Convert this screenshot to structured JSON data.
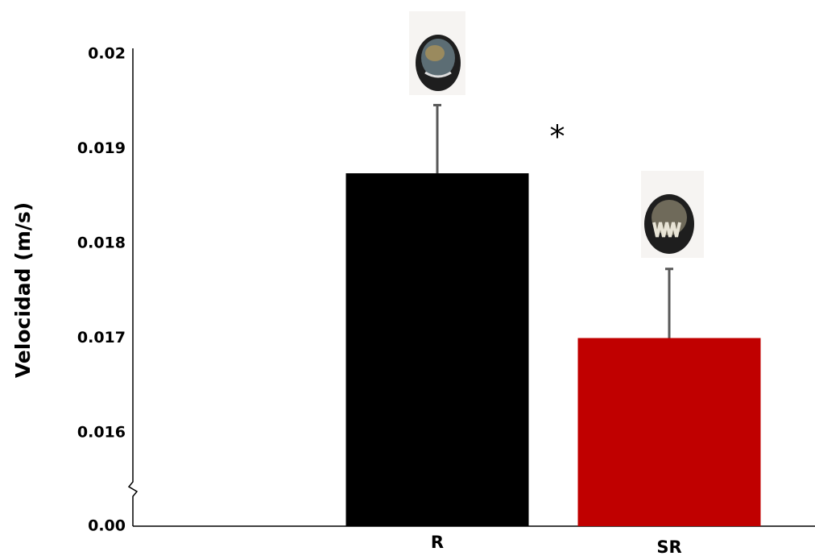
{
  "chart_data": {
    "type": "bar",
    "y_label": "Velocidad (m/s)",
    "categories": [
      "R",
      "SR"
    ],
    "values": [
      0.01874,
      0.017
    ],
    "errors": [
      0.00072,
      0.00073
    ],
    "colors": [
      "#000000",
      "#c00000"
    ],
    "error_color": "#595959",
    "ylim": [
      0,
      0.02
    ],
    "axis_break": [
      0,
      0.016
    ],
    "yticks": [
      {
        "value": 0,
        "label": "0.00"
      },
      0.016,
      0.017,
      0.018,
      0.019,
      0.02
    ],
    "grid": false,
    "annotation": "*"
  }
}
